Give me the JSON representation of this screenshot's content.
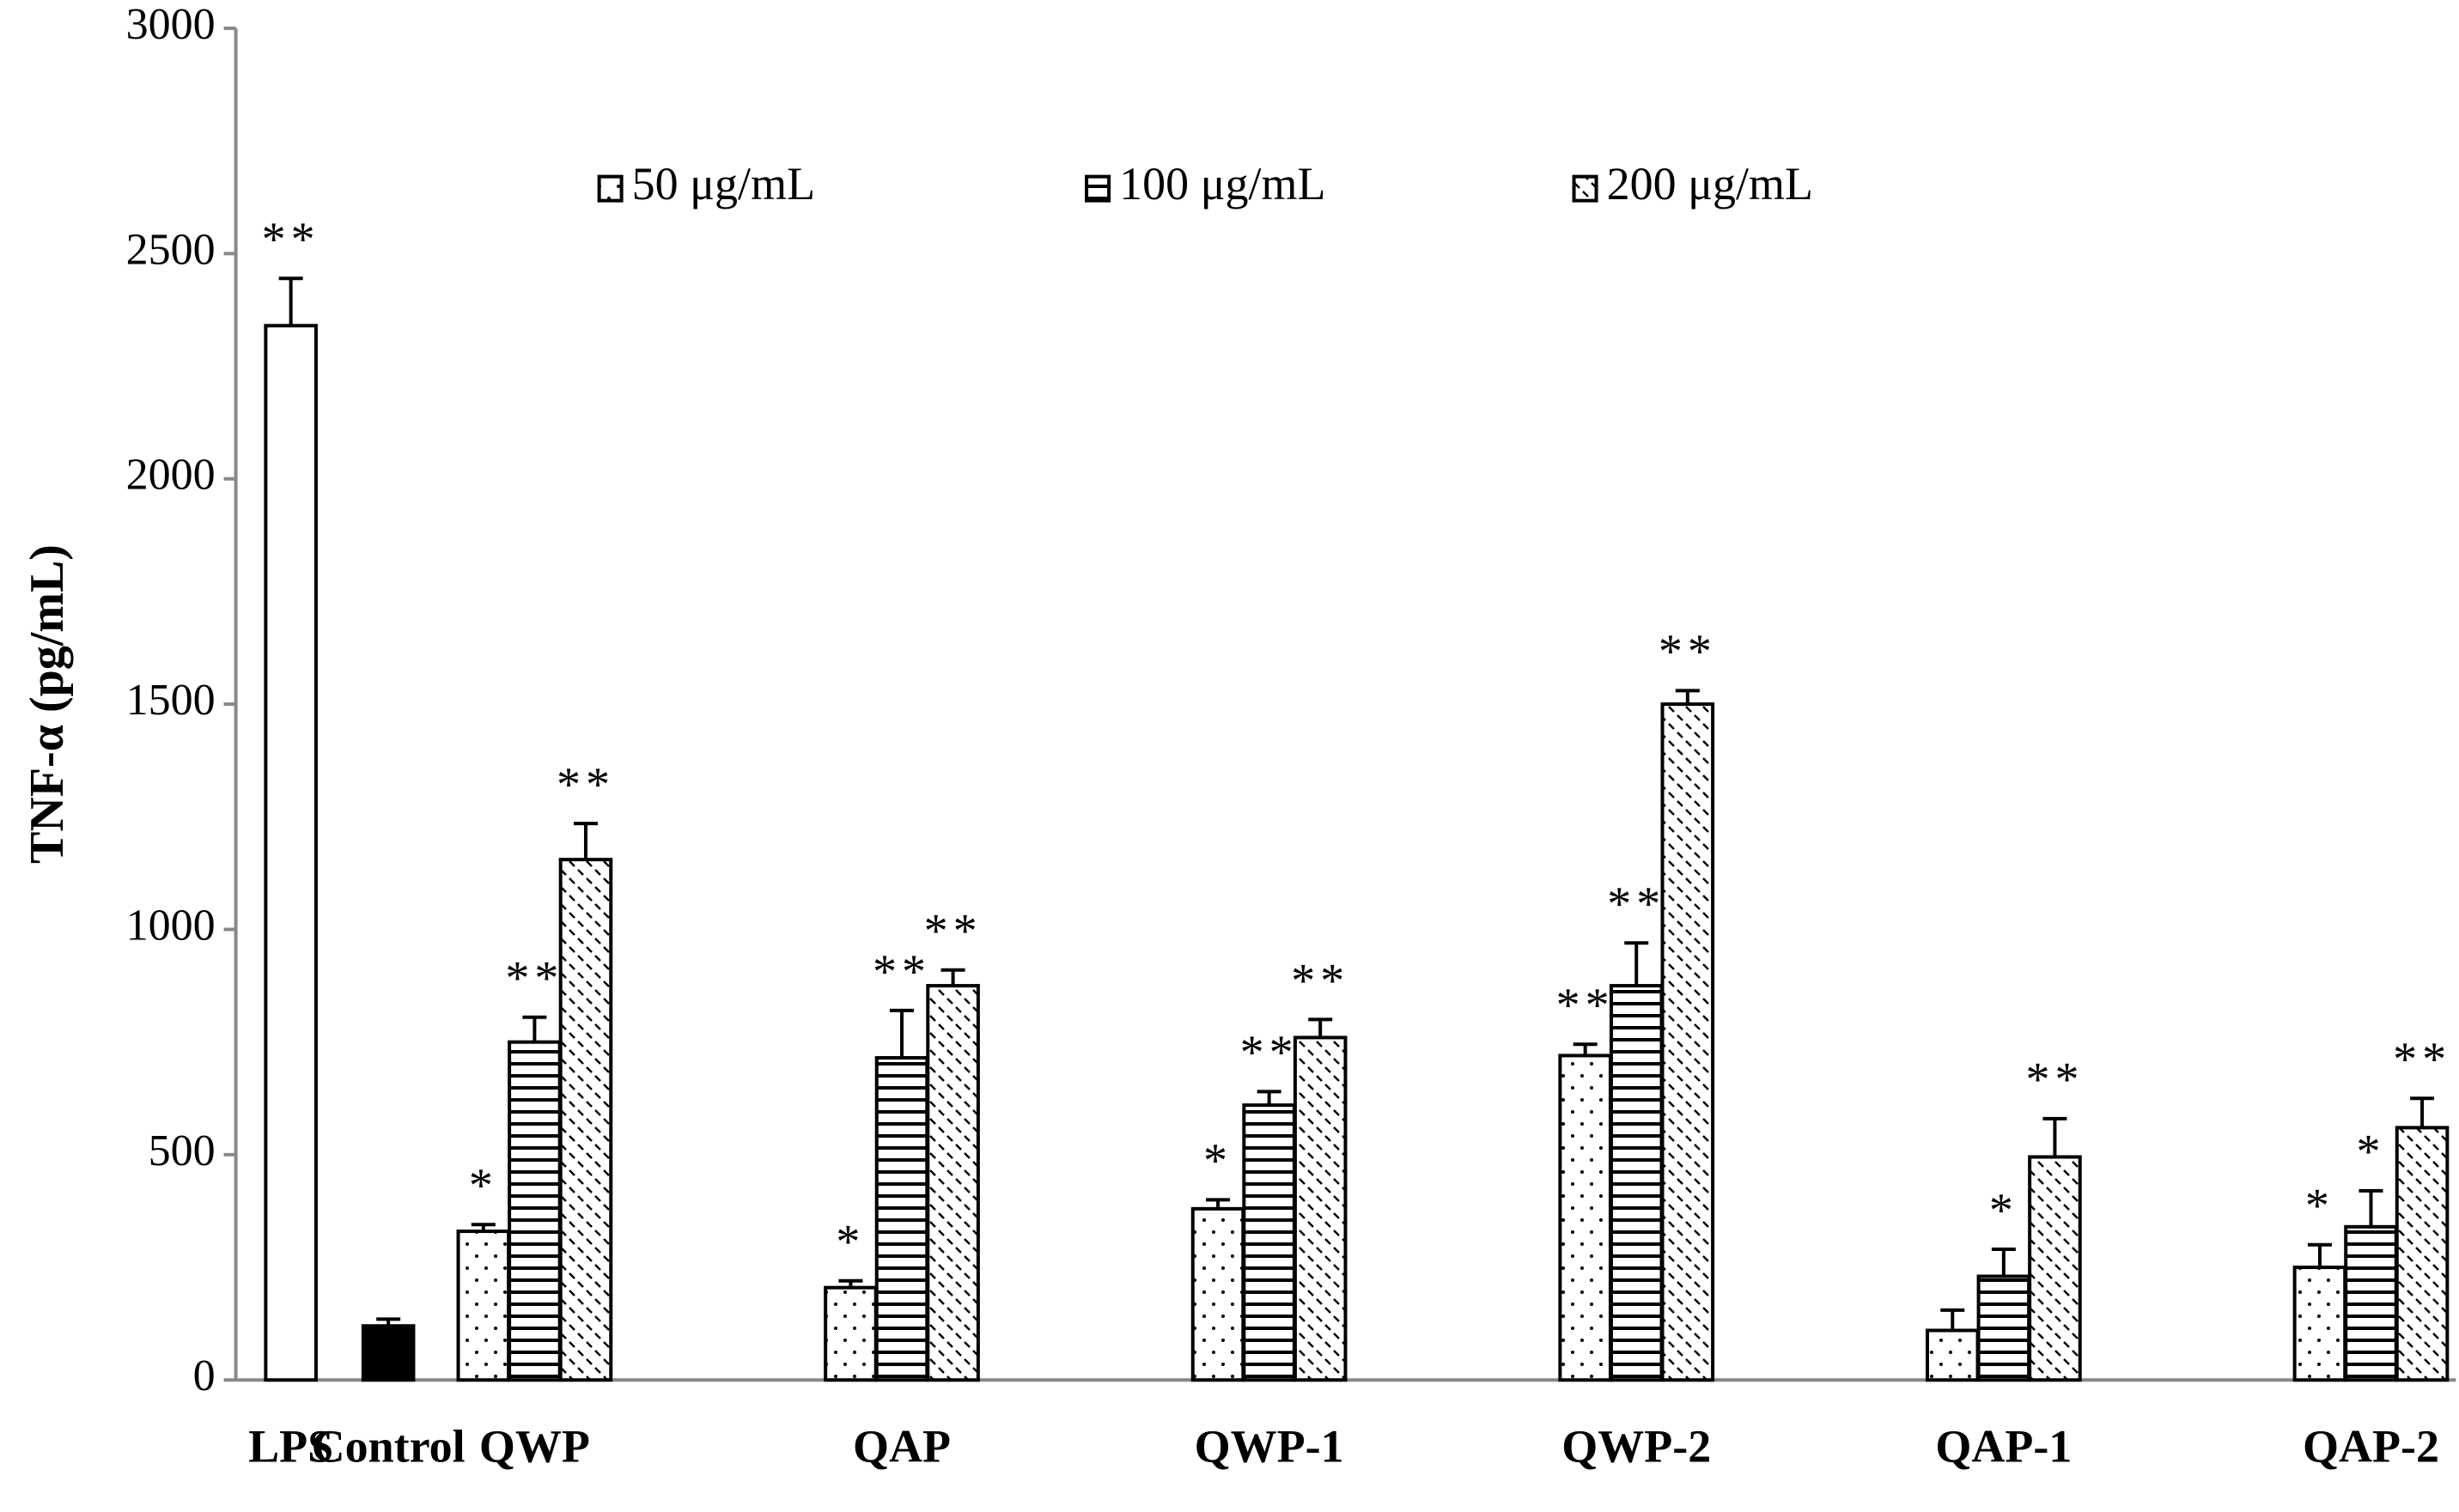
{
  "chart_data": {
    "type": "bar",
    "ylabel": "TNF-α (pg/mL)",
    "categories": [
      "LPS",
      "Control",
      "QWP",
      "QAP",
      "QWP-1",
      "QWP-2",
      "QAP-1",
      "QAP-2"
    ],
    "ylim": [
      0,
      3000
    ],
    "yticks": [
      0,
      500,
      1000,
      1500,
      2000,
      2500,
      3000
    ],
    "single_bars": {
      "values": [
        2340,
        120,
        null,
        null,
        null,
        null,
        null,
        null
      ],
      "errors": [
        105,
        15,
        null,
        null,
        null,
        null,
        null,
        null
      ],
      "colors": [
        "#ffffff",
        "#000000",
        null,
        null,
        null,
        null,
        null,
        null
      ],
      "annotations": [
        "**",
        null,
        null,
        null,
        null,
        null,
        null,
        null
      ]
    },
    "series": [
      {
        "name": "50 μg/mL",
        "color": "#000000",
        "pattern": "dots",
        "values": [
          null,
          null,
          330,
          205,
          380,
          720,
          110,
          250
        ],
        "errors": [
          null,
          null,
          15,
          15,
          20,
          25,
          45,
          50
        ],
        "annotations": [
          null,
          null,
          "*",
          "*",
          "*",
          "**",
          null,
          "*"
        ]
      },
      {
        "name": "100 μg/mL",
        "color": "#000000",
        "pattern": "hlines",
        "values": [
          null,
          null,
          750,
          715,
          610,
          875,
          230,
          340
        ],
        "errors": [
          null,
          null,
          55,
          105,
          30,
          95,
          60,
          80
        ],
        "annotations": [
          null,
          null,
          "**",
          "**",
          "**",
          "**",
          "*",
          "*"
        ]
      },
      {
        "name": "200 μg/mL",
        "color": "#000000",
        "pattern": "diagonal",
        "values": [
          null,
          null,
          1155,
          875,
          760,
          1500,
          495,
          560
        ],
        "errors": [
          null,
          null,
          80,
          35,
          40,
          30,
          85,
          65
        ],
        "annotations": [
          null,
          null,
          "**",
          "**",
          "**",
          "**",
          "**",
          "**"
        ]
      }
    ],
    "legend": "top-center"
  }
}
